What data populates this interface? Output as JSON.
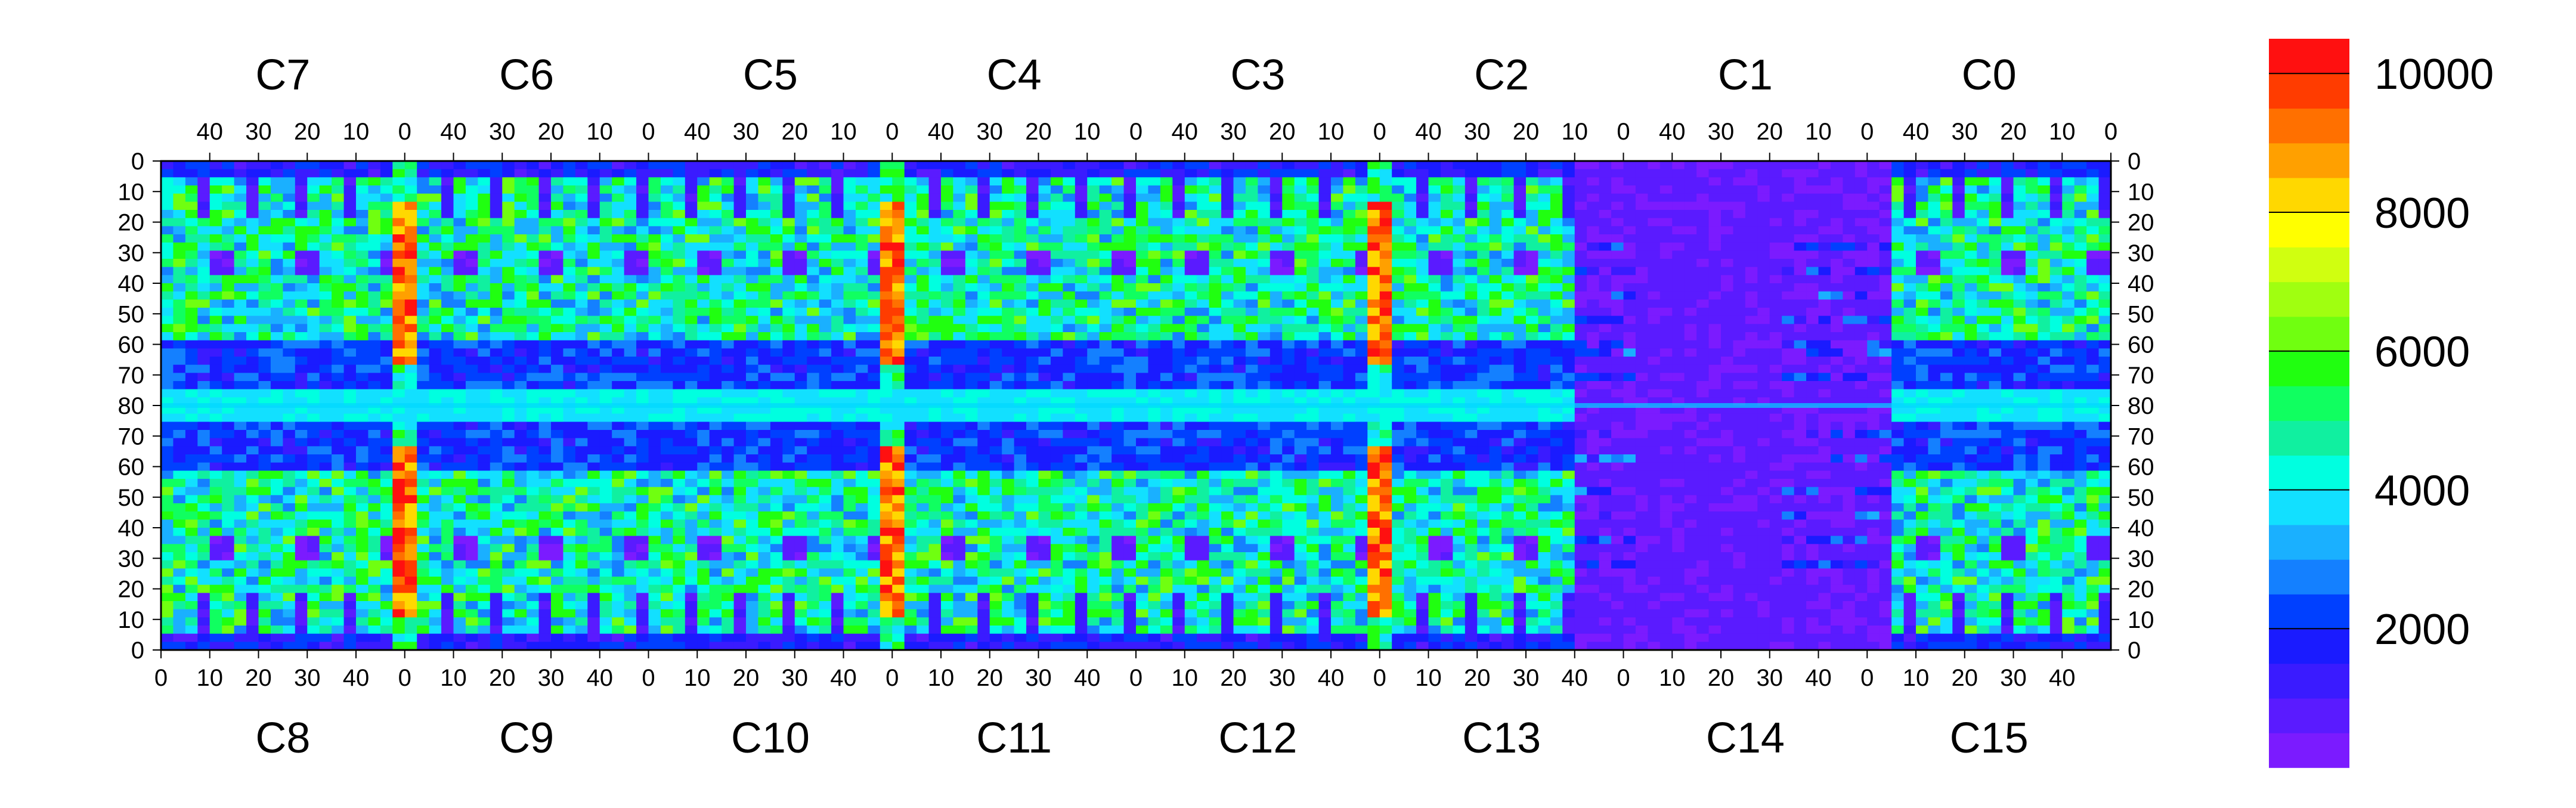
{
  "chart_data": {
    "type": "heatmap",
    "title": "",
    "xlabel": "",
    "ylabel": "",
    "grid": false,
    "legend": "colorbar-right",
    "top_chips": [
      "C7",
      "C6",
      "C5",
      "C4",
      "C3",
      "C2",
      "C1",
      "C0"
    ],
    "bottom_chips": [
      "C8",
      "C9",
      "C10",
      "C11",
      "C12",
      "C13",
      "C14",
      "C15"
    ],
    "top_x_ticks": [
      "40",
      "30",
      "20",
      "10",
      "0"
    ],
    "bottom_x_ticks": [
      "0",
      "10",
      "20",
      "30",
      "40"
    ],
    "top_half_y_ticks": [
      "0",
      "10",
      "20",
      "30",
      "40",
      "50",
      "60",
      "70",
      "80"
    ],
    "bottom_half_y_ticks": [
      "70",
      "60",
      "50",
      "40",
      "30",
      "20",
      "10",
      "0"
    ],
    "colorbar_ticks": [
      "2000",
      "4000",
      "6000",
      "8000",
      "10000"
    ],
    "zlim": [
      0,
      10500
    ],
    "colormap": [
      "#7b1bff",
      "#5a1bff",
      "#3a1bff",
      "#1a1bff",
      "#0040ff",
      "#1480ff",
      "#1ab0ff",
      "#12e0ff",
      "#00ffe0",
      "#10f0a0",
      "#10ff60",
      "#20ff10",
      "#70ff10",
      "#a0ff10",
      "#d0ff10",
      "#ffff00",
      "#ffd800",
      "#ffa000",
      "#ff7000",
      "#ff3c00",
      "#ff1010"
    ],
    "chip_pattern_summary": {
      "edge_columns_value": 10000,
      "pad_rows_value": 3500,
      "active_region_value": 5000,
      "low_blocks_value": 600,
      "C13_C14_central_value": 600
    }
  }
}
